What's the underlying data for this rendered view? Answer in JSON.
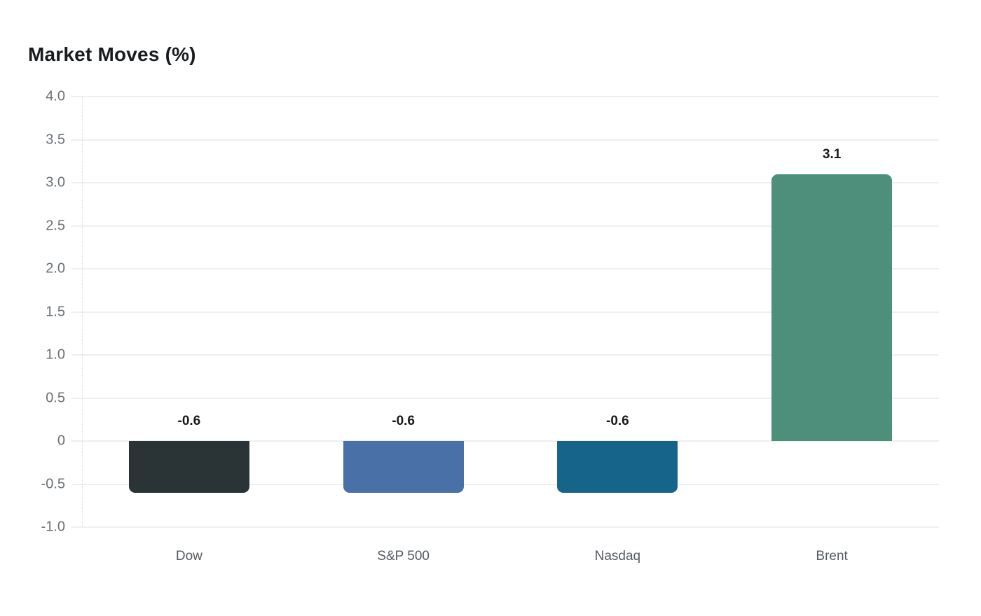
{
  "chart_data": {
    "type": "bar",
    "title": "Market Moves (%)",
    "categories": [
      "Dow",
      "S&P 500",
      "Nasdaq",
      "Brent"
    ],
    "values": [
      -0.6,
      -0.6,
      -0.6,
      3.1
    ],
    "value_labels": [
      "-0.6",
      "-0.6",
      "-0.6",
      "3.1"
    ],
    "bar_colors": [
      "#2a3336",
      "#4a70a8",
      "#17648a",
      "#4d8f7b"
    ],
    "xlabel": "",
    "ylabel": "",
    "ylim": [
      -1.0,
      4.0
    ],
    "yticks": [
      {
        "value": 4.0,
        "label": "4.0"
      },
      {
        "value": 3.5,
        "label": "3.5"
      },
      {
        "value": 3.0,
        "label": "3.0"
      },
      {
        "value": 2.5,
        "label": "2.5"
      },
      {
        "value": 2.0,
        "label": "2.0"
      },
      {
        "value": 1.5,
        "label": "1.5"
      },
      {
        "value": 1.0,
        "label": "1.0"
      },
      {
        "value": 0.5,
        "label": "0.5"
      },
      {
        "value": 0.0,
        "label": "0"
      },
      {
        "value": -0.5,
        "label": "-0.5"
      },
      {
        "value": -1.0,
        "label": "-1.0"
      }
    ],
    "grid": true,
    "legend": false,
    "colors": {
      "background": "#ffffff",
      "gridline": "#efefef",
      "axis_dotted_line": "#d9d9d9",
      "tick_label": "#6b7076",
      "category_label": "#565b61",
      "value_label": "#17191c",
      "title": "#191c1f"
    }
  }
}
